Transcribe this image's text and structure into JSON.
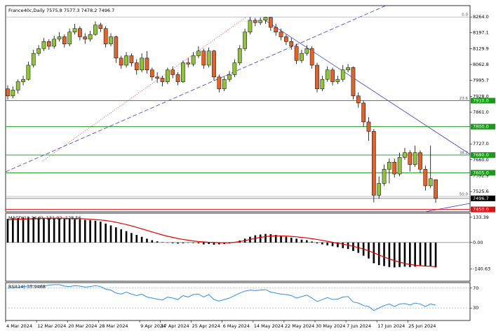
{
  "chart_data": {
    "type": "candlestick",
    "title": "France40c,Daily  7575.8 7577.3 7478.2 7496.7",
    "up_color": "#8fc43a",
    "down_color": "#e0632e",
    "ylim": [
      7440,
      8312
    ],
    "yticks": [
      {
        "value": 8264,
        "label": "8264.0"
      },
      8197.1,
      8129.9,
      8062.8,
      7995.7,
      {
        "value": 7928,
        "label": "7928.0"
      },
      {
        "value": 7861,
        "label": "7861.0"
      },
      {
        "value": 7727,
        "label": "7727.0"
      },
      {
        "value": 7660,
        "label": "7660.0"
      },
      7592.9,
      7525.6
    ],
    "xticks": [
      {
        "value": 0,
        "label": "4 Mar 2024"
      },
      {
        "value": 6,
        "label": "12 Mar 2024"
      },
      {
        "value": 12,
        "label": "20 Mar 2024"
      },
      {
        "value": 18,
        "label": "28 Mar 2024"
      },
      {
        "value": 26,
        "label": "9 Apr 2024"
      },
      {
        "value": 30,
        "label": "17 Apr 2024"
      },
      {
        "value": 36,
        "label": "25 Apr 2024"
      },
      {
        "value": 42,
        "label": "6 May 2024"
      },
      {
        "value": 48,
        "label": "14 May 2024"
      },
      {
        "value": 54,
        "label": "22 May 2024"
      },
      {
        "value": 60,
        "label": "30 May 2024"
      },
      {
        "value": 66,
        "label": "7 Jun 2024"
      },
      {
        "value": 72,
        "label": "17 Jun 2024"
      },
      {
        "value": 78,
        "label": "25 Jun 2024"
      }
    ],
    "levels": [
      {
        "value": 7910,
        "label": "7910.0",
        "color": "#1a9a1a"
      },
      {
        "value": 7800,
        "label": "7800.0",
        "color": "#1a9a1a"
      },
      {
        "value": 7680,
        "label": "7680.0",
        "color": "#1a9a1a"
      },
      {
        "value": 7605,
        "label": "7605.0",
        "color": "#1a9a1a"
      },
      {
        "value": 7496.7,
        "label": "7496.7",
        "color": "#000000"
      },
      {
        "value": 7450,
        "label": "7450.0",
        "color": "#e01010"
      }
    ],
    "fib_levels": [
      {
        "value": 8264,
        "label": "0.0"
      },
      {
        "value": 7910,
        "label": "23.6"
      },
      {
        "value": 7680,
        "label": "38.2"
      },
      {
        "value": 7505,
        "label": "50.0"
      }
    ],
    "ohlc": [
      [
        7960,
        7975,
        7915,
        7930
      ],
      [
        7930,
        7970,
        7920,
        7955
      ],
      [
        7955,
        8000,
        7940,
        7990
      ],
      [
        7990,
        8015,
        7975,
        8000
      ],
      [
        8000,
        8075,
        7995,
        8060
      ],
      [
        8060,
        8125,
        8050,
        8110
      ],
      [
        8110,
        8145,
        8100,
        8130
      ],
      [
        8130,
        8175,
        8120,
        8160
      ],
      [
        8160,
        8170,
        8125,
        8140
      ],
      [
        8140,
        8185,
        8130,
        8170
      ],
      [
        8170,
        8200,
        8160,
        8180
      ],
      [
        8180,
        8190,
        8135,
        8150
      ],
      [
        8150,
        8215,
        8140,
        8200
      ],
      [
        8200,
        8235,
        8190,
        8215
      ],
      [
        8215,
        8225,
        8165,
        8180
      ],
      [
        8180,
        8195,
        8150,
        8170
      ],
      [
        8170,
        8205,
        8160,
        8190
      ],
      [
        8190,
        8245,
        8185,
        8230
      ],
      [
        8230,
        8240,
        8200,
        8215
      ],
      [
        8215,
        8225,
        8135,
        8150
      ],
      [
        8150,
        8195,
        8140,
        8180
      ],
      [
        8180,
        8185,
        8070,
        8090
      ],
      [
        8090,
        8100,
        8045,
        8060
      ],
      [
        8060,
        8115,
        8050,
        8100
      ],
      [
        8100,
        8110,
        8055,
        8070
      ],
      [
        8070,
        8085,
        8020,
        8040
      ],
      [
        8040,
        8110,
        8030,
        8090
      ],
      [
        8090,
        8120,
        8025,
        8040
      ],
      [
        8040,
        8050,
        7995,
        8010
      ],
      [
        8010,
        8030,
        7985,
        8005
      ],
      [
        8005,
        8015,
        7970,
        7990
      ],
      [
        7990,
        8050,
        7980,
        8040
      ],
      [
        8040,
        8055,
        8005,
        8020
      ],
      [
        8020,
        8030,
        7975,
        7990
      ],
      [
        7990,
        8080,
        7985,
        8070
      ],
      [
        8070,
        8090,
        8050,
        8065
      ],
      [
        8065,
        8115,
        8055,
        8100
      ],
      [
        8100,
        8140,
        8090,
        8120
      ],
      [
        8120,
        8130,
        8045,
        8060
      ],
      [
        8060,
        8135,
        8050,
        8120
      ],
      [
        8120,
        8125,
        7995,
        8010
      ],
      [
        8010,
        8020,
        7945,
        7960
      ],
      [
        7960,
        8015,
        7950,
        8000
      ],
      [
        8000,
        8035,
        7990,
        8020
      ],
      [
        8020,
        8085,
        8010,
        8070
      ],
      [
        8070,
        8145,
        8060,
        8130
      ],
      [
        8130,
        8215,
        8120,
        8200
      ],
      [
        8200,
        8264,
        8190,
        8250
      ],
      [
        8250,
        8260,
        8225,
        8240
      ],
      [
        8240,
        8262,
        8230,
        8250
      ],
      [
        8250,
        8264,
        8235,
        8262
      ],
      [
        8262,
        8264,
        8205,
        8220
      ],
      [
        8220,
        8235,
        8185,
        8200
      ],
      [
        8200,
        8215,
        8165,
        8180
      ],
      [
        8180,
        8190,
        8145,
        8160
      ],
      [
        8160,
        8175,
        8125,
        8140
      ],
      [
        8140,
        8150,
        8065,
        8080
      ],
      [
        8080,
        8125,
        8070,
        8110
      ],
      [
        8110,
        8145,
        8100,
        8130
      ],
      [
        8130,
        8140,
        8045,
        8060
      ],
      [
        8060,
        8070,
        7945,
        7960
      ],
      [
        7960,
        8015,
        7950,
        8000
      ],
      [
        8000,
        8055,
        7990,
        8040
      ],
      [
        8040,
        8050,
        7975,
        7990
      ],
      [
        7990,
        8015,
        7980,
        8000
      ],
      [
        8000,
        8060,
        7990,
        8040
      ],
      [
        8040,
        8065,
        8030,
        8050
      ],
      [
        8050,
        8055,
        7915,
        7930
      ],
      [
        7930,
        7945,
        7880,
        7900
      ],
      [
        7900,
        7910,
        7800,
        7820
      ],
      [
        7820,
        7840,
        7740,
        7780
      ],
      [
        7780,
        7790,
        7480,
        7510
      ],
      [
        7510,
        7590,
        7495,
        7560
      ],
      [
        7560,
        7640,
        7550,
        7620
      ],
      [
        7620,
        7665,
        7560,
        7650
      ],
      [
        7650,
        7665,
        7585,
        7600
      ],
      [
        7600,
        7690,
        7590,
        7670
      ],
      [
        7670,
        7710,
        7660,
        7690
      ],
      [
        7690,
        7700,
        7610,
        7640
      ],
      [
        7640,
        7720,
        7630,
        7690
      ],
      [
        7690,
        7700,
        7605,
        7620
      ],
      [
        7620,
        7635,
        7530,
        7550
      ],
      [
        7550,
        7720,
        7540,
        7580
      ],
      [
        7575.8,
        7577.3,
        7478.2,
        7496.7
      ]
    ],
    "macd": {
      "label": "MACD(12,26,9) -131.92 -128.56",
      "ylim": [
        -205,
        155
      ],
      "yticks": [
        133.39,
        {
          "value": 0,
          "label": "0.00"
        },
        -140.63
      ],
      "histogram_color": "#000000",
      "signal_color": "#e00000",
      "histogram": [
        125,
        128,
        130,
        132,
        133,
        133,
        132,
        130,
        130,
        128,
        126,
        125,
        125,
        124,
        123,
        120,
        118,
        115,
        110,
        100,
        90,
        80,
        70,
        60,
        50,
        40,
        30,
        20,
        12,
        6,
        2,
        -2,
        -4,
        -6,
        -4,
        -2,
        -3,
        -5,
        -10,
        -8,
        -12,
        -10,
        -8,
        -5,
        2,
        10,
        20,
        30,
        38,
        42,
        45,
        44,
        40,
        35,
        30,
        25,
        20,
        15,
        12,
        5,
        -5,
        -10,
        -15,
        -20,
        -25,
        -30,
        -35,
        -45,
        -55,
        -70,
        -85,
        -110,
        -120,
        -125,
        -130,
        -132,
        -130,
        -128,
        -130,
        -128,
        -125,
        -127,
        -125,
        -131.92
      ],
      "signal": [
        120,
        121,
        122,
        124,
        125,
        126,
        127,
        128,
        128,
        128,
        128,
        128,
        127,
        127,
        126,
        125,
        123,
        121,
        119,
        116,
        112,
        107,
        101,
        95,
        88,
        80,
        72,
        64,
        56,
        48,
        40,
        33,
        27,
        21,
        16,
        12,
        8,
        5,
        3,
        1,
        0,
        -1,
        -2,
        -1,
        1,
        5,
        10,
        16,
        22,
        27,
        31,
        34,
        35,
        35,
        34,
        32,
        30,
        27,
        24,
        20,
        16,
        11,
        6,
        1,
        -4,
        -9,
        -14,
        -20,
        -27,
        -35,
        -44,
        -55,
        -66,
        -77,
        -87,
        -96,
        -104,
        -111,
        -116,
        -120,
        -123,
        -125,
        -126,
        -128.56
      ]
    },
    "rsi": {
      "label": "RSI(14) 35.9468",
      "ylim": [
        5,
        81
      ],
      "yticks": [
        70,
        30
      ],
      "color": "#2f8fe6",
      "values": [
        70,
        71,
        72,
        73,
        74,
        75,
        75,
        74,
        76,
        77,
        77,
        74,
        73,
        75,
        74,
        72,
        73,
        75,
        73,
        68,
        66,
        60,
        58,
        62,
        58,
        55,
        58,
        52,
        50,
        48,
        46,
        52,
        50,
        47,
        55,
        52,
        57,
        58,
        52,
        57,
        47,
        44,
        47,
        50,
        55,
        60,
        64,
        66,
        65,
        66,
        67,
        62,
        60,
        58,
        57,
        55,
        50,
        53,
        56,
        50,
        43,
        47,
        51,
        47,
        48,
        52,
        53,
        42,
        40,
        35,
        33,
        25,
        30,
        35,
        38,
        33,
        38,
        39,
        36,
        40,
        38,
        33,
        38,
        35.9468
      ]
    }
  }
}
